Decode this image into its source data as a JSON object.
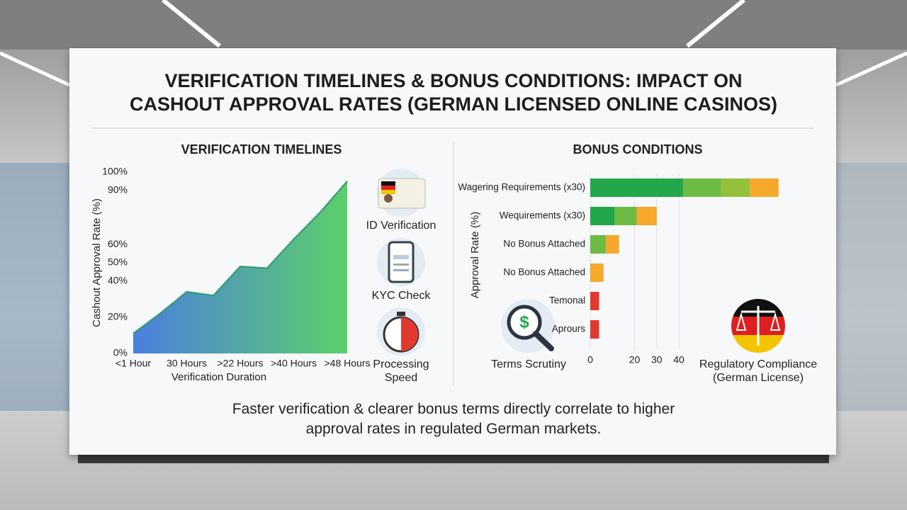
{
  "title": "VERIFICATION TIMELINES & BONUS CONDITIONS: IMPACT ON CASHOUT APPROVAL RATES (GERMAN LICENSED ONLINE CASINOS)",
  "chart_data": [
    {
      "type": "area",
      "title": "VERIFICATION TIMELINES",
      "x_label": "Verification Duration",
      "y_label": "Cashout Approval Rate (%)",
      "categories": [
        "<1 Hour",
        null,
        "30 Hours",
        null,
        ">22 Hours",
        null,
        ">40 Hours",
        null,
        ">48 Hours"
      ],
      "values": [
        11,
        22,
        34,
        32,
        48,
        47,
        63,
        78,
        95
      ],
      "color": "#2e9a6a",
      "ylim": [
        0,
        100
      ],
      "yticks": [
        {
          "value": 0,
          "label": "0%"
        },
        {
          "value": 20,
          "label": "20%"
        },
        {
          "value": 40,
          "label": "40%"
        },
        {
          "value": 50,
          "label": "50%"
        },
        {
          "value": 60,
          "label": "60%"
        },
        {
          "value": 90,
          "label": "90%"
        },
        {
          "value": 100,
          "label": "100%"
        }
      ]
    },
    {
      "type": "bar",
      "orientation": "horizontal",
      "stacked": true,
      "title": "BONUS CONDITIONS",
      "y_label": "Approval Rate (%)",
      "categories": [
        "Wagering Requirements (x30)",
        "Wequirements (x30)",
        "No Bonus Attached",
        "No Bonus Attached",
        "Temonal",
        "Aprours"
      ],
      "series": [
        {
          "color": "#22a84a",
          "values": [
            42,
            11,
            null,
            null,
            null,
            null
          ]
        },
        {
          "color": "#6dbb45",
          "values": [
            17,
            10,
            7,
            null,
            null,
            null
          ]
        },
        {
          "color": "#93c13c",
          "values": [
            13,
            null,
            null,
            null,
            null,
            null
          ]
        },
        {
          "color": "#f5a82a",
          "values": [
            13,
            9,
            6,
            6,
            null,
            null
          ]
        },
        {
          "color": "#e03a30",
          "values": [
            null,
            null,
            null,
            null,
            4,
            4
          ]
        }
      ],
      "xlim": [
        0,
        95
      ],
      "xticks": [
        0,
        20,
        30,
        40
      ],
      "grid": true
    }
  ],
  "icons": [
    "ID Verification",
    "KYC Check",
    "Processing Speed",
    "Terms Scrutiny",
    "Regulatory Compliance (German License)"
  ],
  "footer": "Faster verification & clearer bonus terms directly correlate to higher approval rates in regulated German markets."
}
